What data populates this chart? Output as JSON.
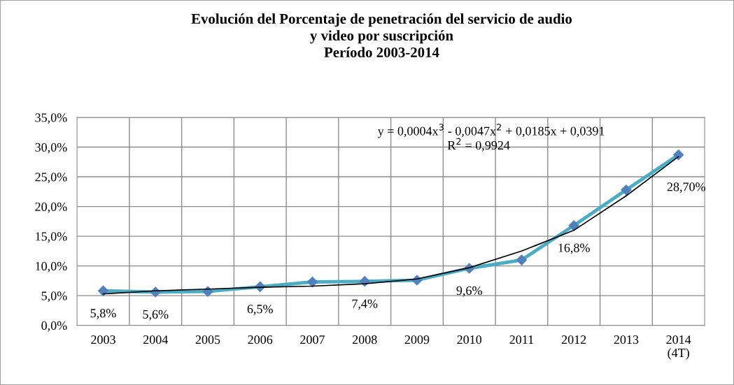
{
  "chart_data": {
    "type": "line",
    "title": "Evolución del Porcentaje de penetración del servicio de audio\ny video por suscripción\nPeríodo 2003-2014",
    "categories": [
      "2003",
      "2004",
      "2005",
      "2006",
      "2007",
      "2008",
      "2009",
      "2010",
      "2011",
      "2012",
      "2013",
      "2014\n(4T)"
    ],
    "series": [
      {
        "color": "#4bacc6",
        "marker": "diamond",
        "line_style": "solid",
        "values": [
          5.8,
          5.6,
          5.7,
          6.5,
          7.3,
          7.4,
          7.6,
          9.6,
          11.0,
          16.8,
          22.8,
          28.7
        ],
        "value_labels": [
          "5,8%",
          "5,6%",
          null,
          "6,5%",
          null,
          "7,4%",
          null,
          "9,6%",
          null,
          "16,8%",
          null,
          "28,70%"
        ]
      },
      {
        "color": "#000000",
        "marker": "none",
        "line_style": "solid",
        "values": [
          5.3,
          5.8,
          6.1,
          6.4,
          6.6,
          7.0,
          7.8,
          9.7,
          12.5,
          16.0,
          21.8,
          28.4
        ]
      }
    ],
    "ylim": [
      0,
      35
    ],
    "yticks": [
      {
        "value": 0,
        "label": "0,0%"
      },
      {
        "value": 5,
        "label": "5,0%"
      },
      {
        "value": 10,
        "label": "10,0%"
      },
      {
        "value": 15,
        "label": "15,0%"
      },
      {
        "value": 20,
        "label": "20,0%"
      },
      {
        "value": 25,
        "label": "25,0%"
      },
      {
        "value": 30,
        "label": "30,0%"
      },
      {
        "value": 35,
        "label": "35,0%"
      }
    ],
    "grid": true,
    "annotations": [
      "y = 0,0004x$^{3}$ - 0,0047x$^{2}$ + 0,0185x + 0,0391",
      "R$^{2}$ = 0,9924"
    ]
  }
}
